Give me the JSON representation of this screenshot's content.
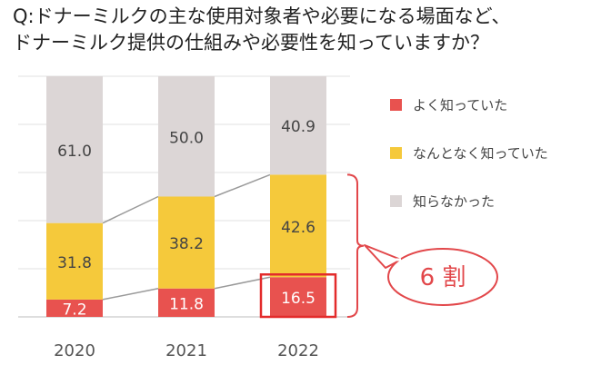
{
  "title_lines": [
    "Q:ドナーミルクの主な使用対象者や必要になる場面など、",
    "ドナーミルク提供の仕組みや必要性を知っていますか？"
  ],
  "chart_data": {
    "type": "bar",
    "stacked": true,
    "categories": [
      "2020",
      "2021",
      "2022"
    ],
    "series": [
      {
        "name": "よく知っていた",
        "values": [
          7.2,
          11.8,
          16.5
        ],
        "color": "#e8524f"
      },
      {
        "name": "なんとなく知っていた",
        "values": [
          31.8,
          38.2,
          42.6
        ],
        "color": "#f5c93b"
      },
      {
        "name": "知らなかった",
        "values": [
          61.0,
          50.0,
          40.9
        ],
        "color": "#dcd6d6"
      }
    ],
    "ylim": [
      0,
      100
    ],
    "grid": true,
    "legend_position": "right",
    "annotation": {
      "text": "6 割",
      "color": "#e2474a",
      "target_category": "2022"
    },
    "highlight_box": {
      "category": "2022",
      "series": "よく知っていた",
      "color": "#e32b2b"
    }
  }
}
